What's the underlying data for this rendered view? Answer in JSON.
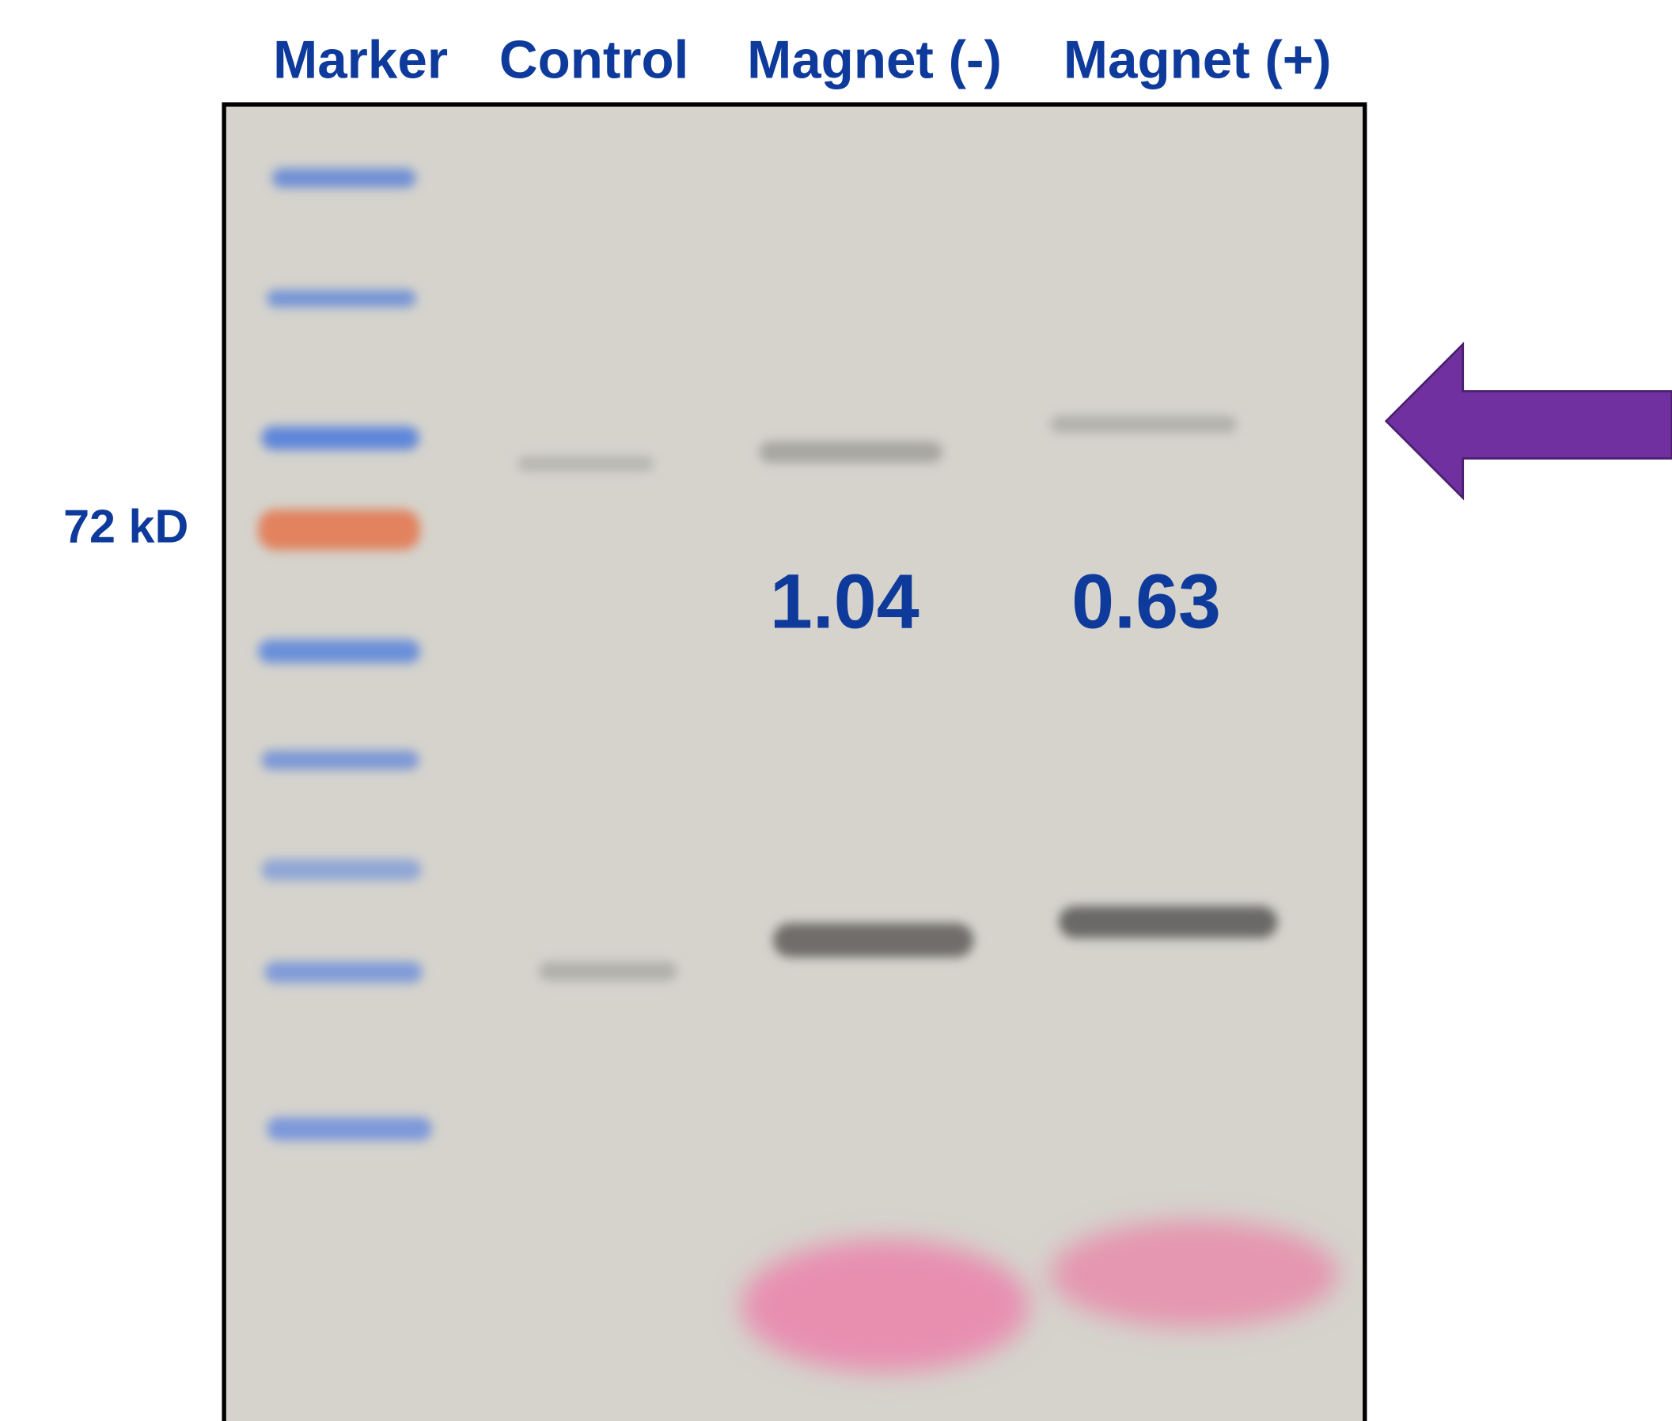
{
  "lanes": [
    "Marker",
    "Control",
    "Magnet (-)",
    "Magnet (+)"
  ],
  "marker_label": "72 kD",
  "band_values": [
    "1.04",
    "0.63"
  ]
}
